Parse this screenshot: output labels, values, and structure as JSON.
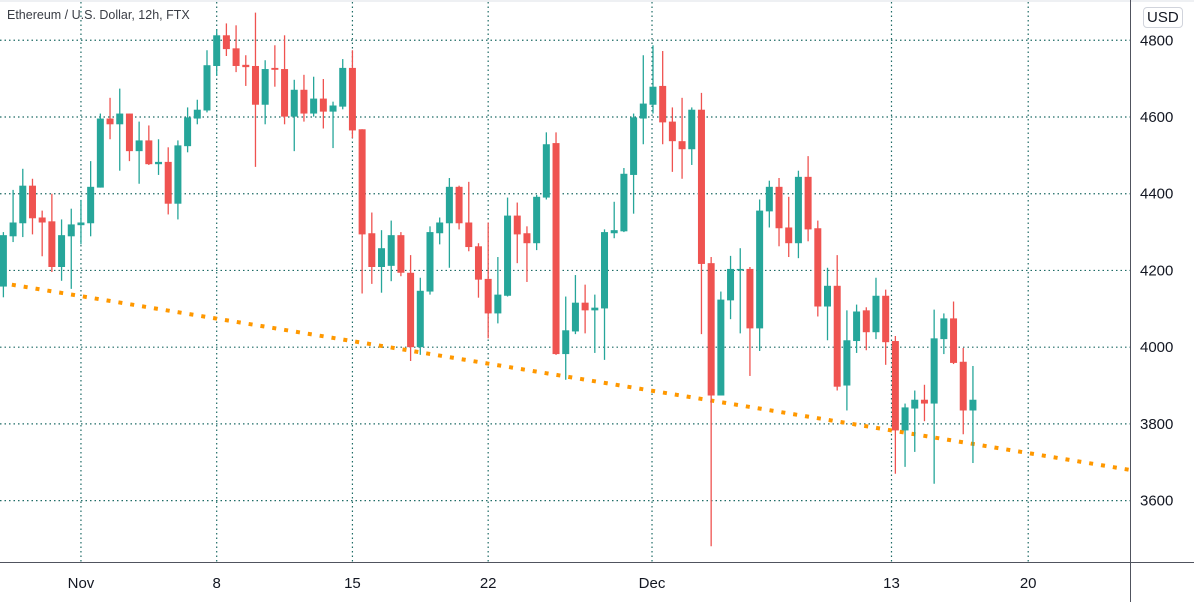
{
  "header": {
    "title": "Ethereum / U.S. Dollar, 12h, FTX",
    "currency_button": "USD"
  },
  "colors": {
    "up": "#26a69a",
    "down": "#ef5350",
    "grid": "#1e6b66",
    "trendline": "#ff9800",
    "axis": "#50535e"
  },
  "chart_data": {
    "type": "candlestick",
    "title": "Ethereum / U.S. Dollar, 12h, FTX",
    "ylabel": "USD",
    "ylim": [
      3440,
      4905
    ],
    "yticks": [
      4800,
      4600,
      4400,
      4200,
      4000,
      3800,
      3600
    ],
    "xticks": [
      {
        "label": "Nov",
        "index": 8
      },
      {
        "label": "8",
        "index": 22
      },
      {
        "label": "15",
        "index": 36
      },
      {
        "label": "22",
        "index": 50
      },
      {
        "label": "Dec",
        "index": 66.9
      },
      {
        "label": "13",
        "index": 91.6
      },
      {
        "label": "20",
        "index": 105.7
      }
    ],
    "xlim": [
      -0.35,
      116.2
    ],
    "grid": true,
    "trendline": {
      "style": "dotted",
      "points": [
        {
          "index": -0.35,
          "price": 4168
        },
        {
          "index": 116.2,
          "price": 3680
        }
      ]
    },
    "candles_ohlc": [
      [
        4158,
        4300,
        4130,
        4292
      ],
      [
        4289,
        4410,
        4274,
        4325
      ],
      [
        4323,
        4465,
        4287,
        4421
      ],
      [
        4421,
        4439,
        4294,
        4336
      ],
      [
        4338,
        4356,
        4237,
        4325
      ],
      [
        4328,
        4400,
        4196,
        4209
      ],
      [
        4209,
        4333,
        4173,
        4292
      ],
      [
        4289,
        4361,
        4152,
        4320
      ],
      [
        4318,
        4384,
        4268,
        4325
      ],
      [
        4323,
        4485,
        4289,
        4418
      ],
      [
        4416,
        4609,
        4416,
        4596
      ],
      [
        4596,
        4650,
        4542,
        4581
      ],
      [
        4581,
        4674,
        4460,
        4609
      ],
      [
        4609,
        4609,
        4485,
        4511
      ],
      [
        4511,
        4588,
        4426,
        4539
      ],
      [
        4539,
        4578,
        4475,
        4477
      ],
      [
        4477,
        4542,
        4449,
        4483
      ],
      [
        4483,
        4521,
        4346,
        4374
      ],
      [
        4374,
        4539,
        4333,
        4526
      ],
      [
        4524,
        4625,
        4508,
        4599
      ],
      [
        4596,
        4645,
        4581,
        4619
      ],
      [
        4617,
        4774,
        4612,
        4735
      ],
      [
        4733,
        4828,
        4707,
        4813
      ],
      [
        4813,
        4844,
        4759,
        4777
      ],
      [
        4779,
        4839,
        4717,
        4733
      ],
      [
        4736,
        4761,
        4681,
        4730
      ],
      [
        4733,
        4872,
        4470,
        4632
      ],
      [
        4632,
        4748,
        4581,
        4725
      ],
      [
        4728,
        4787,
        4679,
        4723
      ],
      [
        4725,
        4813,
        4581,
        4601
      ],
      [
        4601,
        4697,
        4511,
        4671
      ],
      [
        4671,
        4710,
        4588,
        4609
      ],
      [
        4609,
        4705,
        4601,
        4648
      ],
      [
        4648,
        4699,
        4570,
        4614
      ],
      [
        4614,
        4640,
        4519,
        4630
      ],
      [
        4627,
        4751,
        4620,
        4728
      ],
      [
        4728,
        4774,
        4545,
        4565
      ],
      [
        4568,
        4568,
        4140,
        4294
      ],
      [
        4297,
        4351,
        4165,
        4209
      ],
      [
        4209,
        4305,
        4142,
        4258
      ],
      [
        4212,
        4330,
        4172,
        4292
      ],
      [
        4292,
        4300,
        4185,
        4194
      ],
      [
        4194,
        4240,
        3964,
        4000
      ],
      [
        4000,
        4181,
        3980,
        4147
      ],
      [
        4145,
        4315,
        4137,
        4300
      ],
      [
        4297,
        4338,
        4268,
        4325
      ],
      [
        4323,
        4441,
        4207,
        4418
      ],
      [
        4418,
        4421,
        4307,
        4323
      ],
      [
        4325,
        4431,
        4250,
        4261
      ],
      [
        4263,
        4271,
        4129,
        4176
      ],
      [
        4178,
        4325,
        4023,
        4088
      ],
      [
        4088,
        4235,
        4062,
        4137
      ],
      [
        4134,
        4390,
        4132,
        4343
      ],
      [
        4343,
        4377,
        4219,
        4294
      ],
      [
        4297,
        4315,
        4170,
        4271
      ],
      [
        4271,
        4397,
        4253,
        4392
      ],
      [
        4390,
        4560,
        4385,
        4529
      ],
      [
        4532,
        4560,
        3980,
        3982
      ],
      [
        3982,
        4132,
        3915,
        4044
      ],
      [
        4041,
        4188,
        4034,
        4116
      ],
      [
        4116,
        4163,
        4036,
        4096
      ],
      [
        4096,
        4137,
        3985,
        4103
      ],
      [
        4101,
        4307,
        3967,
        4300
      ],
      [
        4297,
        4379,
        4284,
        4305
      ],
      [
        4302,
        4467,
        4300,
        4452
      ],
      [
        4449,
        4609,
        4348,
        4599
      ],
      [
        4596,
        4761,
        4529,
        4635
      ],
      [
        4632,
        4787,
        4609,
        4679
      ],
      [
        4681,
        4772,
        4529,
        4586
      ],
      [
        4588,
        4625,
        4457,
        4537
      ],
      [
        4537,
        4650,
        4439,
        4516
      ],
      [
        4516,
        4625,
        4475,
        4619
      ],
      [
        4619,
        4663,
        4034,
        4217
      ],
      [
        4219,
        4235,
        3481,
        3874
      ],
      [
        3874,
        4145,
        3874,
        4124
      ],
      [
        4122,
        4238,
        4073,
        4204
      ],
      [
        4202,
        4258,
        4036,
        4204
      ],
      [
        4204,
        4209,
        3925,
        4049
      ],
      [
        4049,
        4385,
        3990,
        4356
      ],
      [
        4354,
        4434,
        4312,
        4418
      ],
      [
        4418,
        4441,
        4263,
        4310
      ],
      [
        4312,
        4392,
        4235,
        4271
      ],
      [
        4271,
        4460,
        4232,
        4444
      ],
      [
        4444,
        4498,
        4276,
        4307
      ],
      [
        4310,
        4330,
        4080,
        4106
      ],
      [
        4106,
        4207,
        4018,
        4160
      ],
      [
        4160,
        4240,
        3887,
        3897
      ],
      [
        3900,
        4096,
        3835,
        4018
      ],
      [
        4016,
        4111,
        3985,
        4093
      ],
      [
        4096,
        4104,
        3992,
        4039
      ],
      [
        4039,
        4181,
        4021,
        4134
      ],
      [
        4134,
        4150,
        3954,
        4013
      ],
      [
        4016,
        4029,
        3670,
        3783
      ],
      [
        3783,
        3853,
        3688,
        3843
      ],
      [
        3840,
        3887,
        3727,
        3863
      ],
      [
        3863,
        3902,
        3807,
        3853
      ],
      [
        3853,
        4098,
        3644,
        4023
      ],
      [
        4021,
        4088,
        3982,
        4075
      ],
      [
        4075,
        4119,
        3956,
        3959
      ],
      [
        3962,
        3998,
        3773,
        3835
      ],
      [
        3835,
        3951,
        3698,
        3863
      ]
    ]
  }
}
